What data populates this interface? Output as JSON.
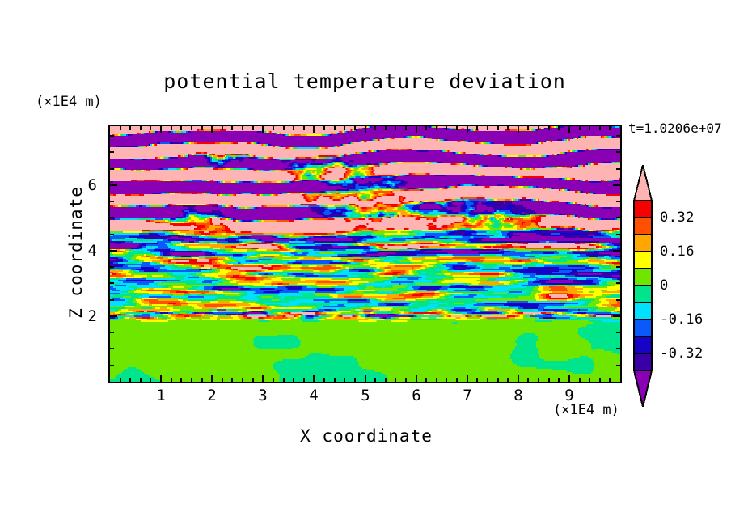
{
  "chart_data": {
    "type": "heatmap",
    "title": "potential temperature deviation",
    "timestamp": "t=1.0206e+07",
    "xlabel": "X coordinate",
    "ylabel": "Z coordinate",
    "x_axis_unit": "(×1E4 m)",
    "y_axis_unit": "(×1E4 m)",
    "xlim": [
      0,
      10
    ],
    "ylim": [
      0,
      7.8
    ],
    "x_major_ticks": [
      1,
      2,
      3,
      4,
      5,
      6,
      7,
      8,
      9
    ],
    "x_minor_step": 0.2,
    "y_major_ticks": [
      2,
      4,
      6
    ],
    "y_minor_step": 0.5,
    "grid": false,
    "colorbar": {
      "orientation": "vertical",
      "position": "right",
      "levels": [
        -0.4,
        -0.32,
        -0.24,
        -0.16,
        -0.08,
        0,
        0.08,
        0.16,
        0.24,
        0.32,
        0.4
      ],
      "colors_low_to_high": [
        "#8A00B4",
        "#3A00A8",
        "#1503C8",
        "#0A5AFA",
        "#00E0FF",
        "#00E58C",
        "#6EE600",
        "#FFFF00",
        "#FFA600",
        "#FF4F00",
        "#F80000",
        "#FFB4B4"
      ],
      "arrow_high_color": "#FFB4B4",
      "arrow_low_color": "#8A00B4",
      "tick_labels": [
        {
          "text": "0.32",
          "level": 0.32
        },
        {
          "text": "0.16",
          "level": 0.16
        },
        {
          "text": "0",
          "level": 0
        },
        {
          "text": "-0.16",
          "level": -0.16
        },
        {
          "text": "-0.32",
          "level": -0.32
        }
      ]
    },
    "field": {
      "seed": 7,
      "description": "Stratified turbulence snapshot: nearly uniform weakly-negative mixed layer (spring green with chartreuse swirls) below z≈1.9; fine horizontally-elongated turbulent striations spanning the full color range for 1.9<z<4.6; large-amplitude alternating pink/purple gravity-wave bands above z≈4.6 with breaking multicolored billows centered near x≈5-7.5",
      "bottom_top": 1.9,
      "middle_top": 4.6,
      "amp_bottom": 0.105,
      "amp_middle": 0.66,
      "amp_top": 0.95,
      "billows": [
        {
          "x": 5.2,
          "z": 5.45,
          "rx": 1.5,
          "rz": 0.85
        },
        {
          "x": 7.4,
          "z": 4.95,
          "rx": 1.15,
          "rz": 0.6
        },
        {
          "x": 2.1,
          "z": 6.85,
          "rx": 0.7,
          "rz": 0.35
        },
        {
          "x": 4.2,
          "z": 6.55,
          "rx": 0.9,
          "rz": 0.45
        },
        {
          "x": 1.6,
          "z": 5.0,
          "rx": 0.8,
          "rz": 0.5
        }
      ]
    }
  }
}
